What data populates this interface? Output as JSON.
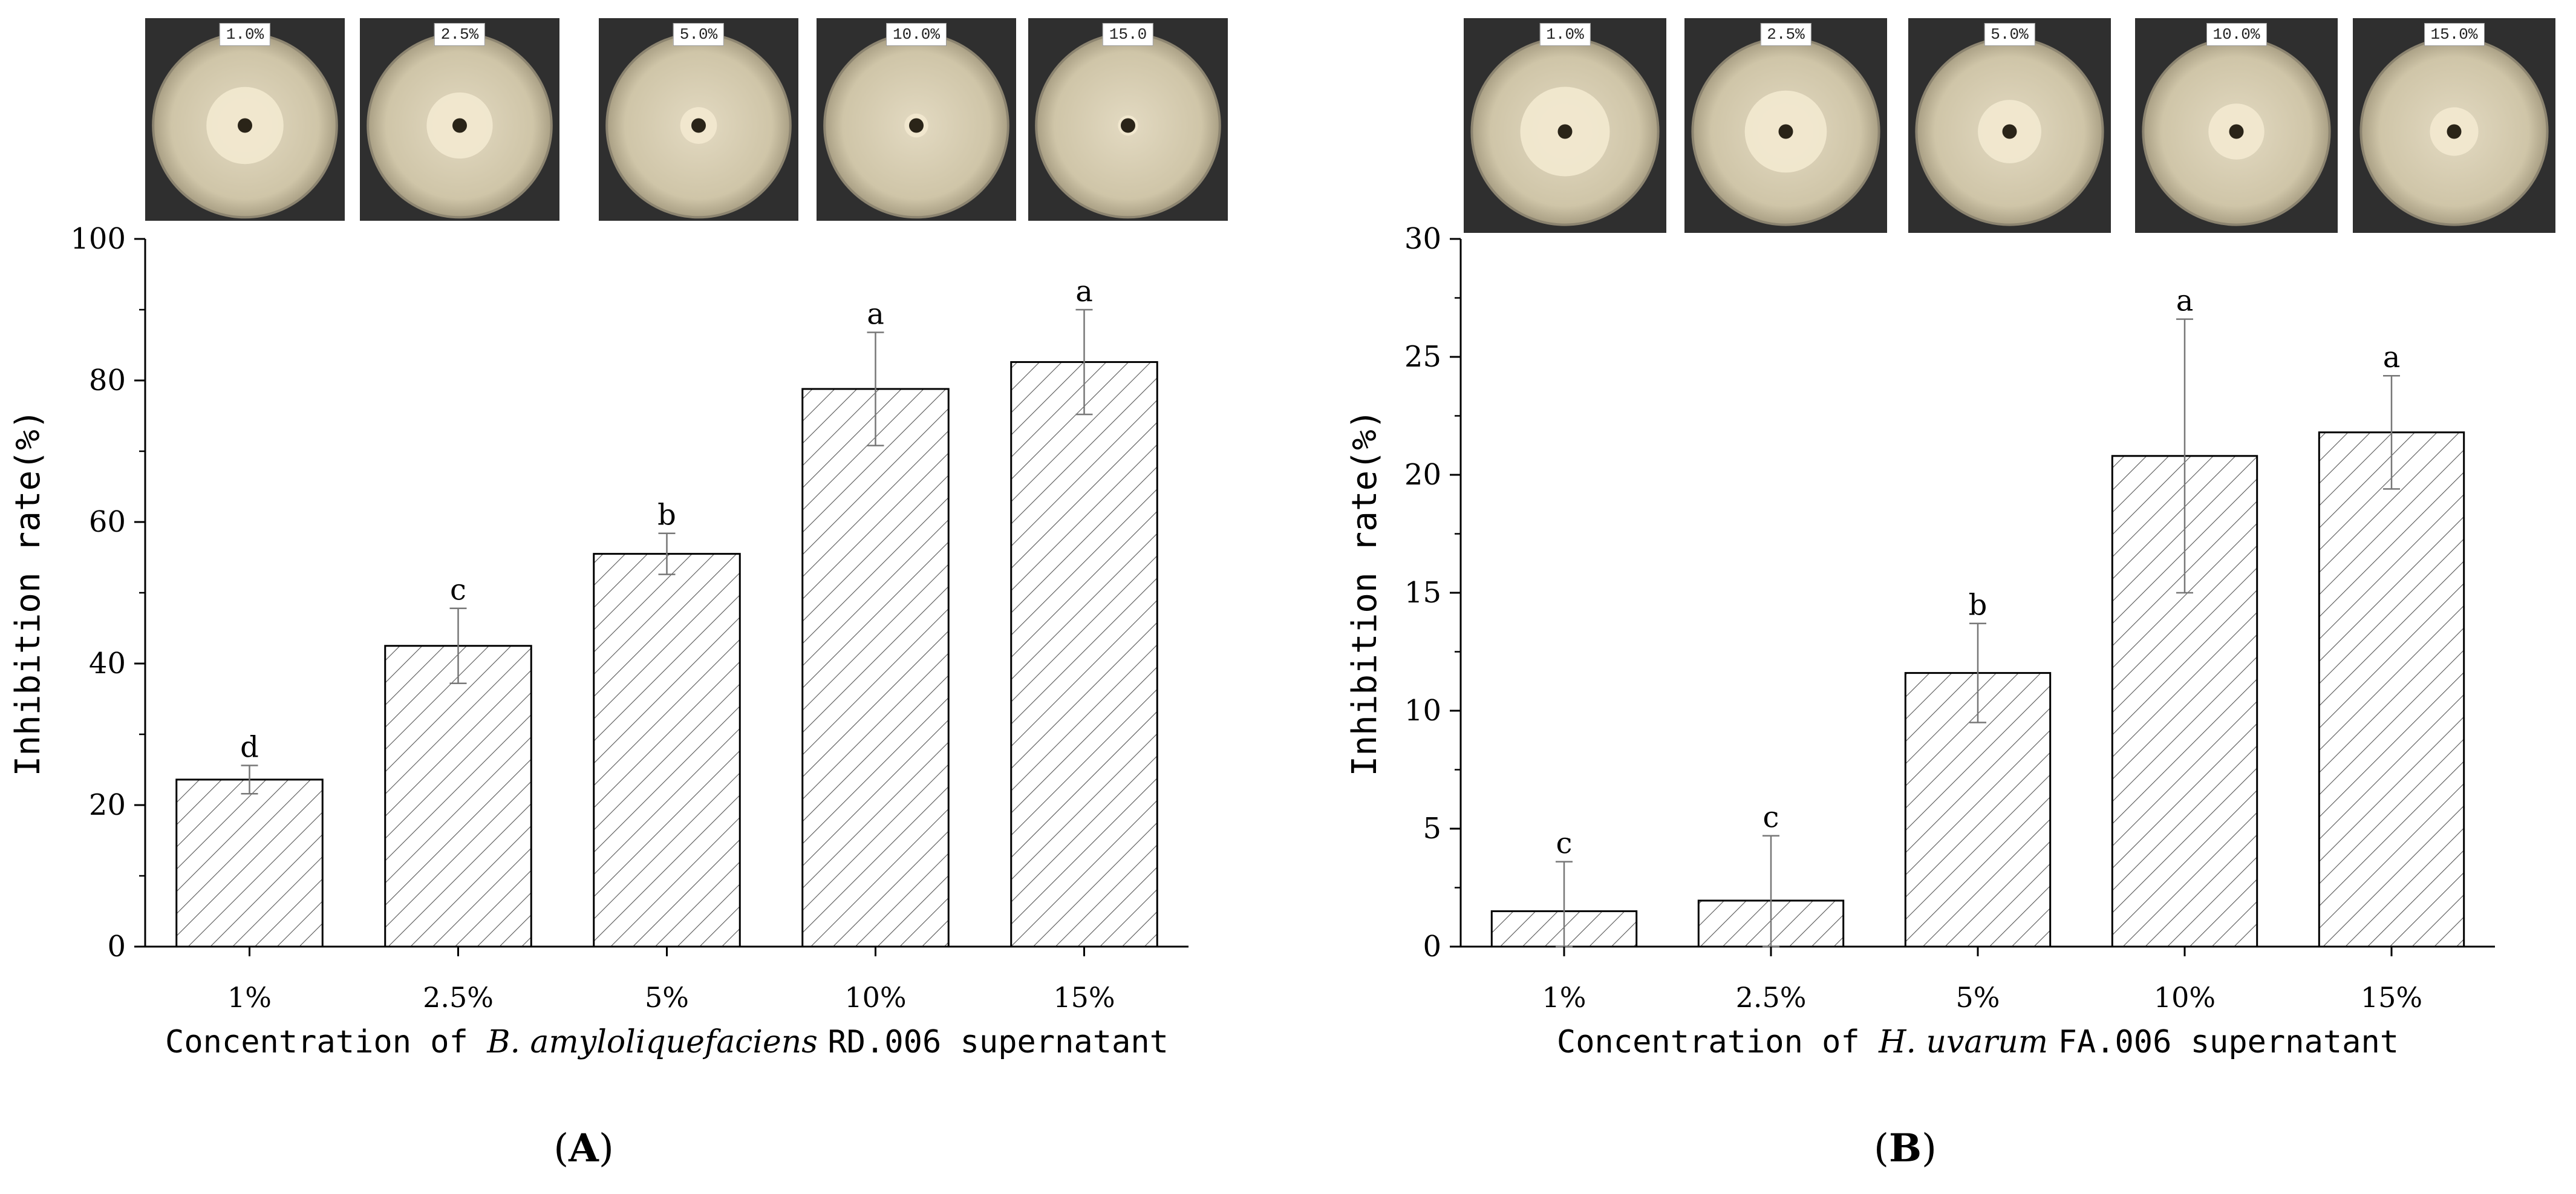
{
  "panels": [
    {
      "panel_label": "A",
      "plate_labels": [
        "1.0%",
        "2.5%",
        "5.0%",
        "10.0%",
        "15.0"
      ],
      "chart": {
        "ylabel": "Inhibition rate(%)",
        "xlabel_prefix": "Concentration of",
        "xlabel_species": "B. amyloliquefaciens",
        "xlabel_suffix": "RD.006 supernatant"
      }
    },
    {
      "panel_label": "B",
      "plate_labels": [
        "1.0%",
        "2.5%",
        "5.0%",
        "10.0%",
        "15.0%"
      ],
      "chart": {
        "ylabel": "Inhibition rate(%)",
        "xlabel_prefix": "Concentration of",
        "xlabel_species": "H. uvarum",
        "xlabel_suffix": "FA.006 supernatant"
      }
    }
  ],
  "chart_data": [
    {
      "type": "bar",
      "panel": "A",
      "title": "",
      "xlabel": "Concentration of B. amyloliquefaciens RD.006 supernatant",
      "ylabel": "Inhibition rate(%)",
      "categories": [
        "1%",
        "2.5%",
        "5%",
        "10%",
        "15%"
      ],
      "values": [
        23.6,
        42.5,
        55.5,
        78.8,
        82.6
      ],
      "error": [
        2.0,
        5.3,
        2.9,
        8.0,
        7.4
      ],
      "significance_letters": [
        "d",
        "c",
        "b",
        "a",
        "a"
      ],
      "ylim": [
        0,
        100
      ],
      "yticks": [
        0,
        20,
        40,
        60,
        80,
        100
      ],
      "yticks_minor_step": 10,
      "bar_fill": "hatched",
      "grid": false
    },
    {
      "type": "bar",
      "panel": "B",
      "title": "",
      "xlabel": "Concentration of H. uvarum FA.006 supernatant",
      "ylabel": "Inhibition rate(%)",
      "categories": [
        "1%",
        "2.5%",
        "5%",
        "10%",
        "15%"
      ],
      "values": [
        1.5,
        1.95,
        11.6,
        20.8,
        21.8
      ],
      "error": [
        2.1,
        2.75,
        2.1,
        5.8,
        2.4
      ],
      "significance_letters": [
        "c",
        "c",
        "b",
        "a",
        "a"
      ],
      "ylim": [
        0,
        30
      ],
      "yticks": [
        0,
        5,
        10,
        15,
        20,
        25,
        30
      ],
      "yticks_minor_step": 2.5,
      "bar_fill": "hatched",
      "grid": false
    }
  ],
  "colors": {
    "axis": "#000000",
    "hatch": "#555555",
    "errorbar": "#777777",
    "plate_bg": "#2f2f2f",
    "agar": "#d9cfb4",
    "colony": "#f1e8cf"
  }
}
